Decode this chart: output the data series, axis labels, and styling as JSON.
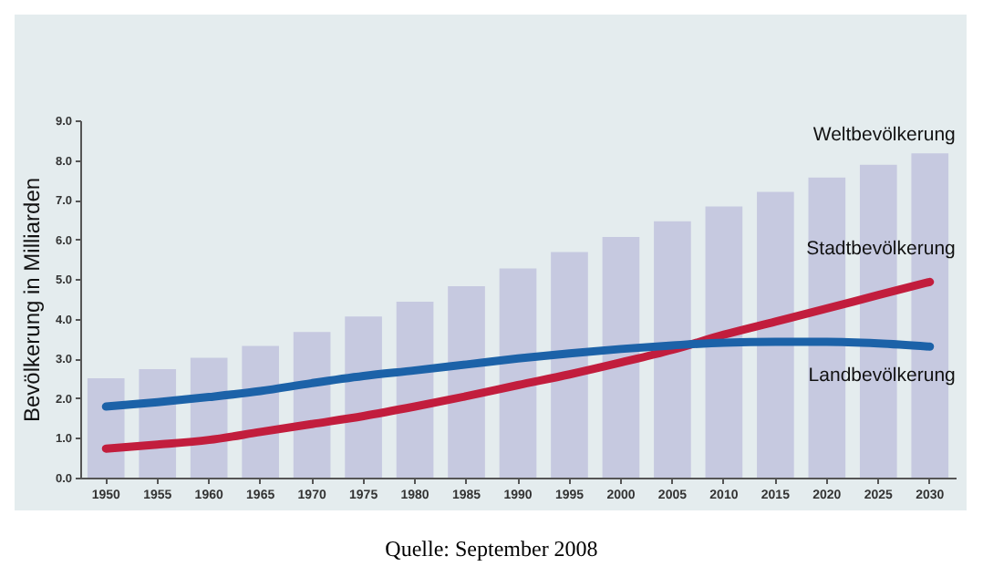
{
  "chart_data": {
    "type": "bar",
    "ylabel": "Bevölkerung in Milliarden",
    "categories": [
      "1950",
      "1955",
      "1960",
      "1965",
      "1970",
      "1975",
      "1980",
      "1985",
      "1990",
      "1995",
      "2000",
      "2005",
      "2010",
      "2015",
      "2020",
      "2025",
      "2030"
    ],
    "series": [
      {
        "name": "Weltbevölkerung",
        "color": "#c6c9e0",
        "values": [
          2.5,
          2.73,
          3.02,
          3.32,
          3.67,
          4.06,
          4.43,
          4.82,
          5.27,
          5.68,
          6.06,
          6.46,
          6.83,
          7.2,
          7.56,
          7.88,
          8.17
        ]
      },
      {
        "name": "Stadtbevölkerung",
        "type": "line",
        "color": "#c21d3d",
        "values": [
          0.73,
          0.83,
          0.95,
          1.15,
          1.35,
          1.55,
          1.79,
          2.05,
          2.33,
          2.6,
          2.9,
          3.22,
          3.6,
          3.93,
          4.26,
          4.6,
          4.93
        ]
      },
      {
        "name": "Landbevölkerung",
        "type": "line",
        "color": "#1c62a8",
        "values": [
          1.79,
          1.9,
          2.03,
          2.18,
          2.38,
          2.56,
          2.7,
          2.85,
          3.0,
          3.13,
          3.24,
          3.33,
          3.4,
          3.42,
          3.42,
          3.38,
          3.3
        ]
      }
    ],
    "ylim": [
      0,
      9
    ],
    "yticks": [
      {
        "value": 0,
        "label": "0.0"
      },
      {
        "value": 1,
        "label": "1.0"
      },
      {
        "value": 2,
        "label": "2.0"
      },
      {
        "value": 3,
        "label": "3.0"
      },
      {
        "value": 4,
        "label": "4.0"
      },
      {
        "value": 5,
        "label": "5.0"
      },
      {
        "value": 6,
        "label": "6.0"
      },
      {
        "value": 7,
        "label": "7.0"
      },
      {
        "value": 8,
        "label": "8.0"
      },
      {
        "value": 9,
        "label": "9.0"
      }
    ],
    "grid": false,
    "annotations": [
      "Quelle: September 2008"
    ]
  }
}
